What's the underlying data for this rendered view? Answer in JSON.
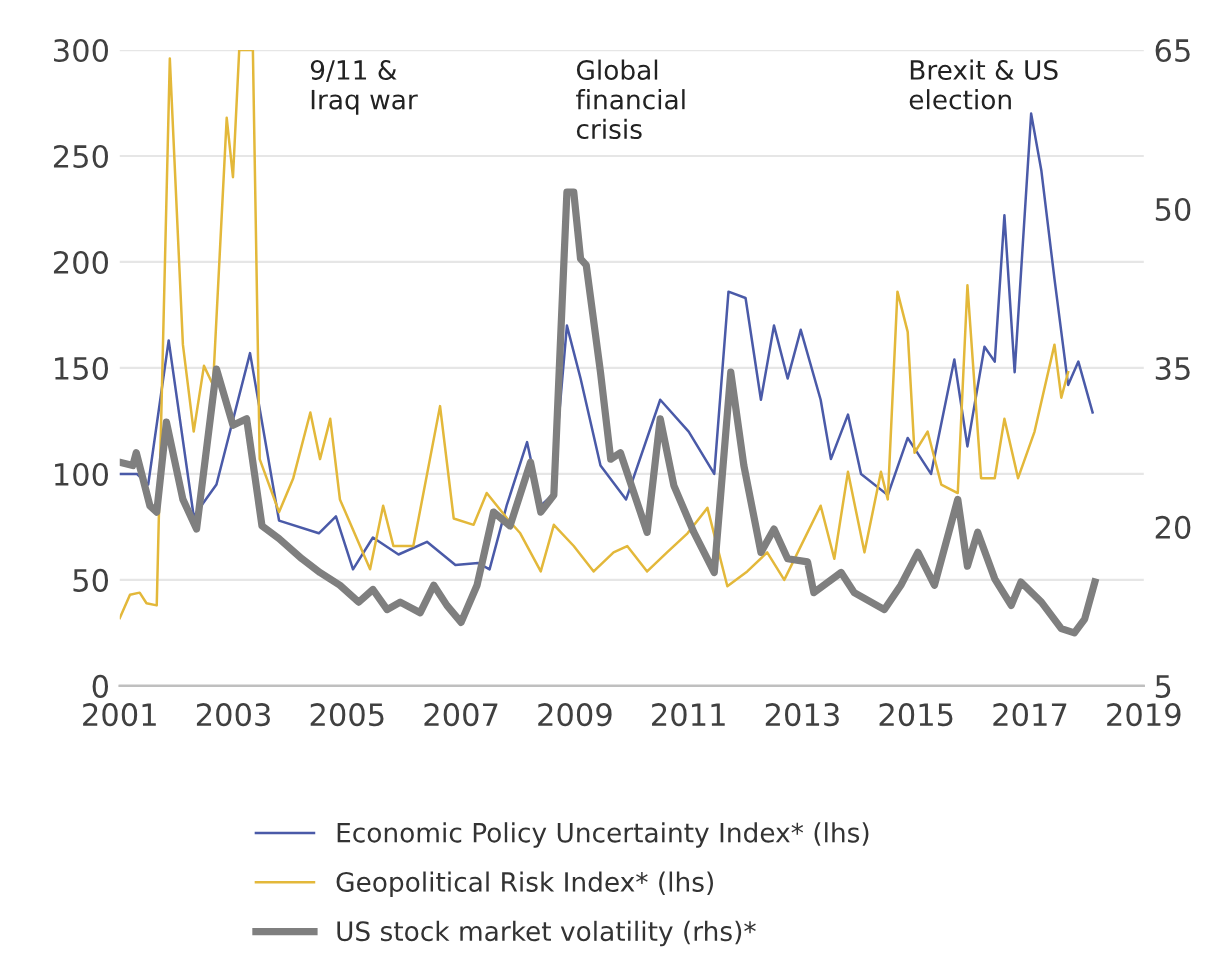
{
  "chart_data": {
    "type": "line",
    "xlim": [
      2001,
      2019
    ],
    "xticks": [
      2001,
      2003,
      2005,
      2007,
      2009,
      2011,
      2013,
      2015,
      2017,
      2019
    ],
    "ylim": [
      0,
      300
    ],
    "yticks": [
      0,
      50,
      100,
      150,
      200,
      250,
      300
    ],
    "y2lim": [
      5,
      65
    ],
    "y2ticks": [
      5,
      20,
      35,
      50,
      65
    ],
    "grid": "y",
    "legend": "bottom",
    "marker": "none",
    "line_style": "solid",
    "annotations": [
      "9/11 &\nIraq war",
      "Global\nfinancial\ncrisis",
      "Brexit & US\nelection"
    ],
    "series": [
      {
        "name": "Economic Policy Uncertainty Index* (lhs)",
        "color": "#4a5aa8",
        "x": [
          2001.0,
          2001.3,
          2001.5,
          2001.86,
          2002.3,
          2002.7,
          2003.29,
          2003.8,
          2004.5,
          2004.8,
          2005.1,
          2005.45,
          2005.9,
          2006.4,
          2006.9,
          2007.3,
          2007.5,
          2007.8,
          2008.16,
          2008.4,
          2008.6,
          2008.86,
          2009.1,
          2009.45,
          2009.9,
          2010.5,
          2011.0,
          2011.45,
          2011.7,
          2012.0,
          2012.27,
          2012.5,
          2012.74,
          2012.97,
          2013.32,
          2013.5,
          2013.8,
          2014.03,
          2014.5,
          2014.85,
          2015.26,
          2015.67,
          2015.9,
          2016.2,
          2016.38,
          2016.55,
          2016.73,
          2017.02,
          2017.2,
          2017.43,
          2017.67,
          2017.85,
          2018.1
        ],
        "values": [
          100,
          100,
          95,
          163,
          80,
          95,
          157,
          78,
          72,
          80,
          55,
          70,
          62,
          68,
          57,
          58,
          55,
          85,
          115,
          85,
          90,
          170,
          145,
          104,
          88,
          135,
          120,
          100,
          186,
          183,
          135,
          170,
          145,
          168,
          135,
          107,
          128,
          100,
          90,
          117,
          100,
          154,
          113,
          160,
          153,
          222,
          148,
          270,
          243,
          192,
          142,
          153,
          129
        ]
      },
      {
        "name": "Geopolitical Risk Index* (lhs)",
        "color": "#e3b83a",
        "x": [
          2001.0,
          2001.18,
          2001.35,
          2001.47,
          2001.65,
          2001.88,
          2002.11,
          2002.3,
          2002.48,
          2002.64,
          2002.88,
          2002.99,
          2003.1,
          2003.34,
          2003.46,
          2003.8,
          2004.05,
          2004.35,
          2004.52,
          2004.7,
          2004.87,
          2005.4,
          2005.63,
          2005.81,
          2006.16,
          2006.63,
          2006.87,
          2007.22,
          2007.45,
          2007.81,
          2008.04,
          2008.4,
          2008.63,
          2008.98,
          2009.33,
          2009.68,
          2009.92,
          2010.27,
          2010.62,
          2010.98,
          2011.33,
          2011.68,
          2012.03,
          2012.38,
          2012.68,
          2013.32,
          2013.56,
          2013.8,
          2014.09,
          2014.38,
          2014.5,
          2014.67,
          2014.85,
          2014.97,
          2015.2,
          2015.44,
          2015.73,
          2015.9,
          2016.14,
          2016.38,
          2016.55,
          2016.79,
          2017.08,
          2017.43,
          2017.55,
          2017.67
        ],
        "values": [
          32,
          43,
          44,
          39,
          38,
          296,
          161,
          120,
          151,
          142,
          268,
          240,
          300,
          300,
          107,
          82,
          98,
          129,
          107,
          126,
          88,
          55,
          85,
          66,
          66,
          132,
          79,
          76,
          91,
          79,
          72,
          54,
          76,
          66,
          54,
          63,
          66,
          54,
          63,
          72,
          84,
          47,
          54,
          63,
          50,
          85,
          60,
          101,
          63,
          101,
          88,
          186,
          167,
          110,
          120,
          95,
          91,
          189,
          98,
          98,
          126,
          98,
          120,
          161,
          136,
          148
        ]
      },
      {
        "name": "US stock market volatility (rhs)*",
        "color": "#7f7f7f",
        "axis": "y2",
        "x": [
          2001.0,
          2001.23,
          2001.29,
          2001.53,
          2001.65,
          2001.82,
          2002.11,
          2002.35,
          2002.7,
          2002.99,
          2003.23,
          2003.5,
          2003.8,
          2004.2,
          2004.52,
          2004.87,
          2005.2,
          2005.45,
          2005.7,
          2005.93,
          2006.28,
          2006.52,
          2006.75,
          2007.0,
          2007.28,
          2007.57,
          2007.86,
          2008.22,
          2008.4,
          2008.63,
          2008.86,
          2008.98,
          2009.1,
          2009.2,
          2009.45,
          2009.63,
          2009.8,
          2010.27,
          2010.5,
          2010.74,
          2011.09,
          2011.45,
          2011.74,
          2011.97,
          2012.27,
          2012.5,
          2012.74,
          2013.09,
          2013.2,
          2013.68,
          2013.91,
          2014.44,
          2014.73,
          2015.03,
          2015.32,
          2015.73,
          2015.9,
          2016.08,
          2016.38,
          2016.67,
          2016.84,
          2017.2,
          2017.55,
          2017.78,
          2017.96,
          2018.14
        ],
        "values": [
          26.1,
          25.8,
          27,
          22,
          21.4,
          29.9,
          22.6,
          19.8,
          34.9,
          29.6,
          30.2,
          20.1,
          18.9,
          17,
          15.7,
          14.5,
          12.9,
          14.1,
          12.2,
          12.9,
          11.9,
          14.5,
          12.6,
          11,
          14.5,
          21.4,
          20.1,
          26.1,
          21.4,
          23,
          51.6,
          51.6,
          45.3,
          44.7,
          34.6,
          26.4,
          27,
          19.5,
          30.2,
          23.9,
          19.5,
          15.7,
          34.6,
          25.8,
          17.6,
          19.8,
          17,
          16.7,
          13.8,
          15.7,
          13.8,
          12.2,
          14.5,
          17.6,
          14.5,
          22.6,
          16.3,
          19.5,
          15.1,
          12.6,
          14.8,
          12.9,
          10.4,
          10,
          11.3,
          14.8
        ]
      }
    ]
  }
}
